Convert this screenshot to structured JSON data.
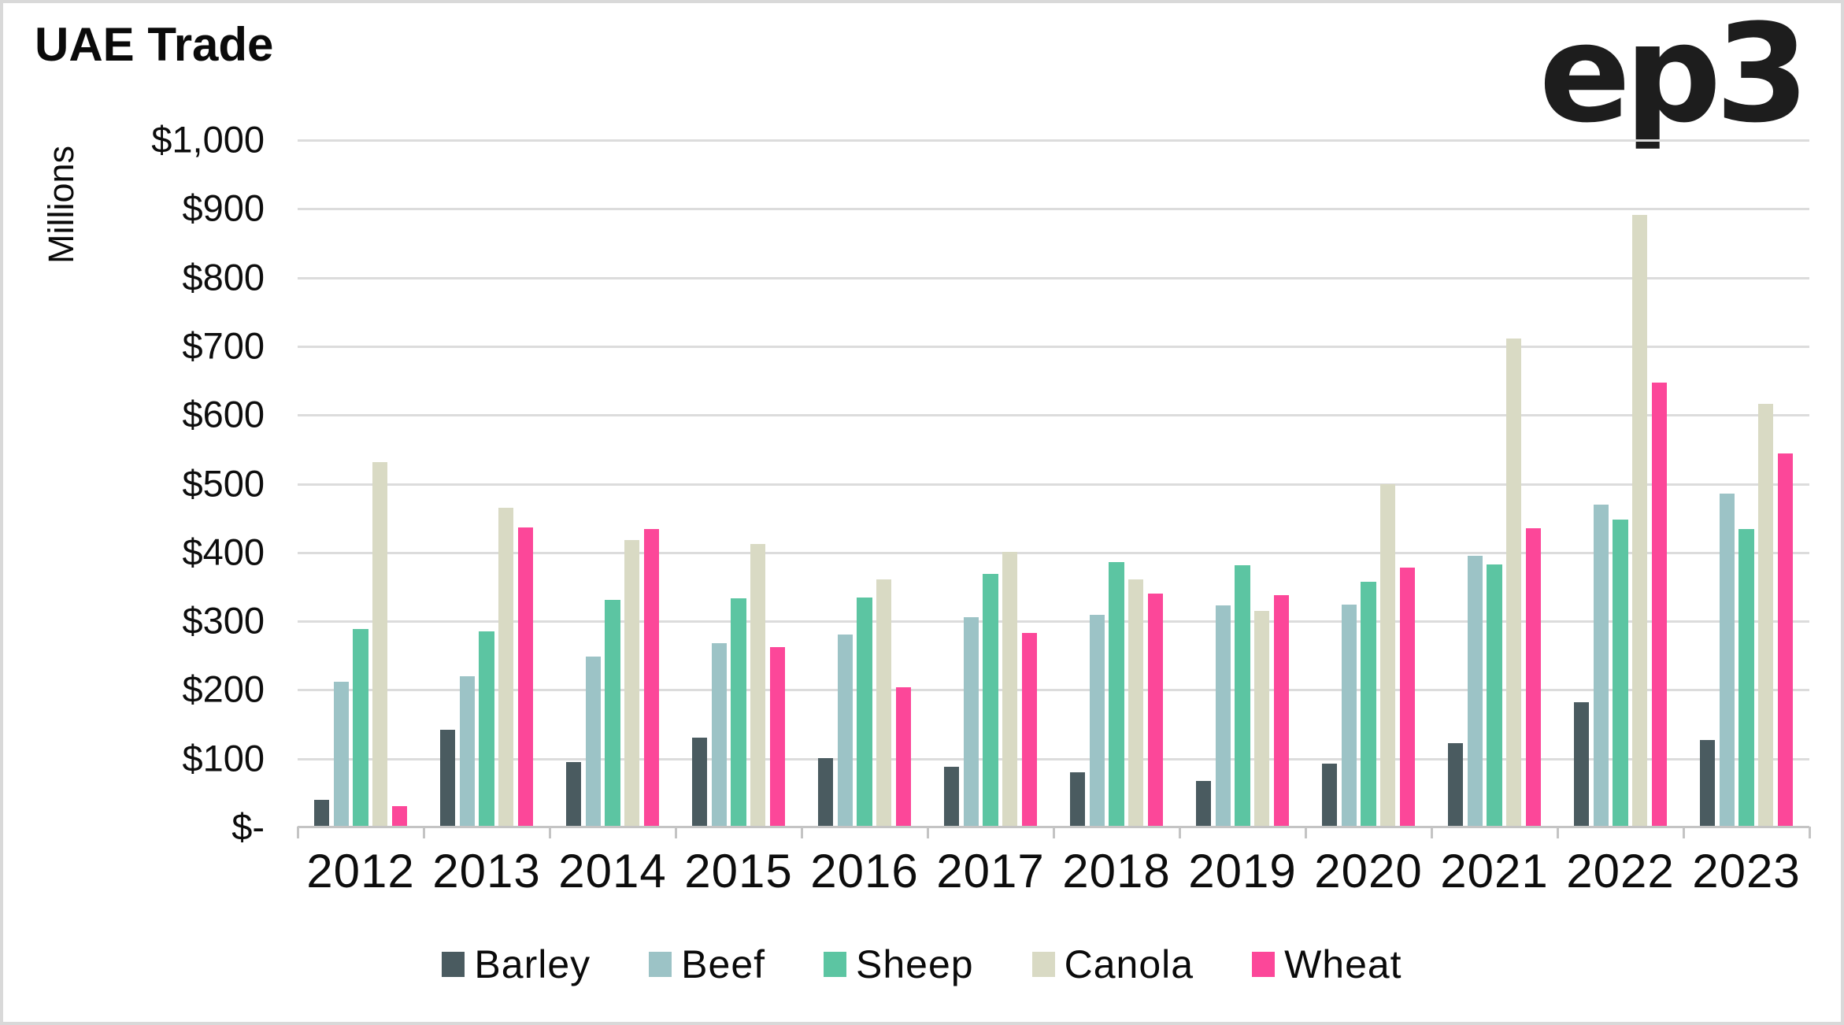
{
  "frame": {
    "title": "UAE Trade",
    "logo": "ep3"
  },
  "chart_data": {
    "type": "bar",
    "title": "UAE Trade",
    "xlabel": "",
    "ylabel": "Millions",
    "ymin": 0,
    "ymax": 1000,
    "grid": true,
    "legend_position": "bottom",
    "y_ticks": [
      "$1,000",
      "$900",
      "$800",
      "$700",
      "$600",
      "$500",
      "$400",
      "$300",
      "$200",
      "$100",
      "$-"
    ],
    "categories": [
      "2012",
      "2013",
      "2014",
      "2015",
      "2016",
      "2017",
      "2018",
      "2019",
      "2020",
      "2021",
      "2022",
      "2023"
    ],
    "series": [
      {
        "name": "Barley",
        "color": "#4a5b60",
        "values": [
          39,
          141,
          94,
          129,
          100,
          87,
          79,
          67,
          92,
          121,
          181,
          126
        ]
      },
      {
        "name": "Beef",
        "color": "#9cc3c6",
        "values": [
          211,
          219,
          247,
          267,
          280,
          305,
          308,
          322,
          323,
          394,
          468,
          484
        ]
      },
      {
        "name": "Sheep",
        "color": "#5cc5a2",
        "values": [
          287,
          284,
          330,
          332,
          333,
          368,
          385,
          380,
          356,
          381,
          447,
          433
        ]
      },
      {
        "name": "Canola",
        "color": "#d9dac4",
        "values": [
          530,
          464,
          417,
          411,
          360,
          400,
          360,
          314,
          498,
          710,
          890,
          615
        ]
      },
      {
        "name": "Wheat",
        "color": "#fc4799",
        "values": [
          30,
          435,
          433,
          261,
          203,
          282,
          339,
          337,
          377,
          434,
          646,
          543
        ]
      }
    ],
    "colors": {
      "gridline": "#dcdcdc",
      "axis_line": "#c4c4c4",
      "text": "#0d0d0d",
      "background": "#ffffff",
      "frame_border": "#d9d9d9"
    }
  }
}
